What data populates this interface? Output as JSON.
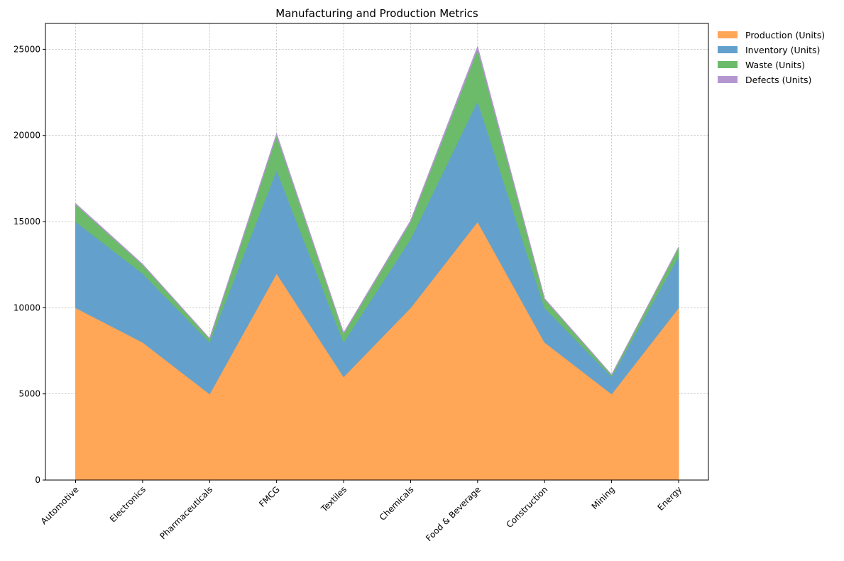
{
  "chart_data": {
    "type": "area",
    "stacked": true,
    "title": "Manufacturing and Production Metrics",
    "xlabel": "",
    "ylabel": "",
    "categories": [
      "Automotive",
      "Electronics",
      "Pharmaceuticals",
      "FMCG",
      "Textiles",
      "Chemicals",
      "Food & Beverage",
      "Construction",
      "Mining",
      "Energy"
    ],
    "series": [
      {
        "name": "Production (Units)",
        "color": "#ffa657",
        "values": [
          10000,
          8000,
          5000,
          12000,
          6000,
          10000,
          15000,
          8000,
          5000,
          10000
        ]
      },
      {
        "name": "Inventory (Units)",
        "color": "#63a1cc",
        "values": [
          5000,
          4000,
          3000,
          6000,
          2000,
          4000,
          7000,
          2000,
          1000,
          3000
        ]
      },
      {
        "name": "Waste (Units)",
        "color": "#6bbb6b",
        "values": [
          1000,
          500,
          200,
          2000,
          500,
          1000,
          3000,
          500,
          100,
          500
        ]
      },
      {
        "name": "Defects (Units)",
        "color": "#b597d0",
        "values": [
          50,
          30,
          20,
          100,
          40,
          60,
          150,
          30,
          10,
          20
        ]
      }
    ],
    "ylim": [
      0,
      26500
    ],
    "yticks": [
      0,
      5000,
      10000,
      15000,
      20000,
      25000
    ],
    "grid": true,
    "legend_position": "outside-top-right"
  }
}
